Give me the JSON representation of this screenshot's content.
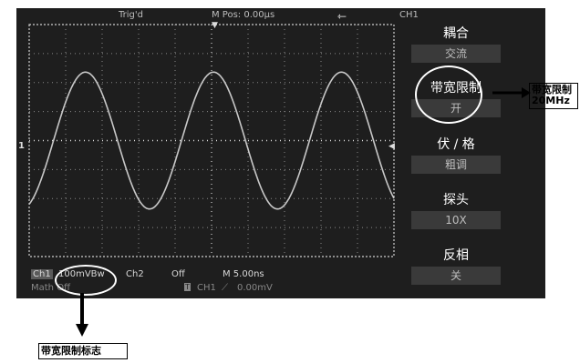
{
  "topbar": {
    "trigger_status": "Trig'd",
    "m_pos": "M Pos: 0.00μs",
    "usb_icon": "usb-icon",
    "channel": "CH1"
  },
  "menu": {
    "items": [
      {
        "label": "耦合",
        "value": "交流"
      },
      {
        "label": "带宽限制",
        "value": "开"
      },
      {
        "label": "伏 / 格",
        "value": "粗调"
      },
      {
        "label": "探头",
        "value": "10X"
      },
      {
        "label": "反相",
        "value": "关"
      }
    ]
  },
  "status": {
    "ch1_tag": "Ch1",
    "ch1_scale": "100mVBw",
    "ch2_label": "Ch2",
    "ch2_state": "Off",
    "timebase": "M 5.00ns",
    "math": "Math Off",
    "trigger_source": "CH1",
    "trigger_level": "0.00mV"
  },
  "markers": {
    "ch1_ground": "1"
  },
  "annotations": {
    "right": "带宽限制20MHz",
    "bottom": "带宽限制标志"
  },
  "waveform": {
    "color": "#c8c8c8",
    "periods_visible": 2.85
  }
}
